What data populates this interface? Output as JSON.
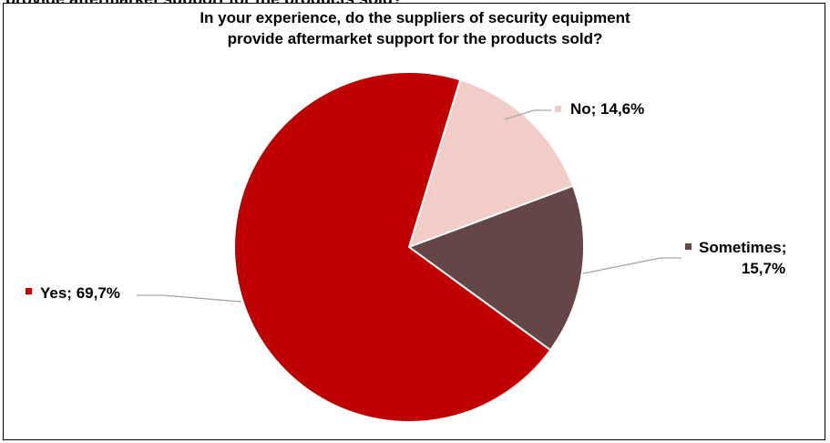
{
  "clipped_heading": "provide aftermarket support for the products sold?",
  "chart_data": {
    "type": "pie",
    "title_lines": [
      "In your experience, do the suppliers of security equipment",
      "provide aftermarket support for the products sold?"
    ],
    "slices": [
      {
        "label": "No",
        "value": 14.6,
        "color": "#F2CDC8",
        "text": "No; 14,6%"
      },
      {
        "label": "Sometimes",
        "value": 15.7,
        "color": "#644646",
        "text_lines": [
          "Sometimes;",
          "15,7%"
        ]
      },
      {
        "label": "Yes",
        "value": 69.7,
        "color": "#C00000",
        "text": "Yes; 69,7%"
      }
    ],
    "legend": "none",
    "labels": "outside with leader lines"
  }
}
